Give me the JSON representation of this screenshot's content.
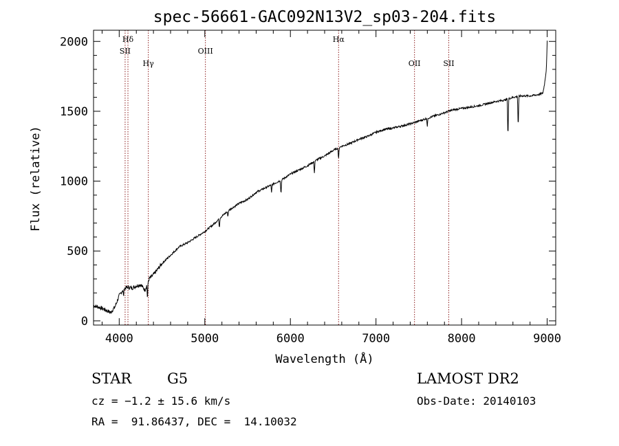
{
  "chart_data": {
    "type": "line",
    "title": "spec-56661-GAC092N13V2_sp03-204.fits",
    "xlabel": "Wavelength (Å)",
    "ylabel": "Flux (relative)",
    "xlim": [
      3700,
      9100
    ],
    "ylim": [
      -30,
      2080
    ],
    "x_ticks": [
      4000,
      5000,
      6000,
      7000,
      8000,
      9000
    ],
    "y_ticks": [
      0,
      500,
      1000,
      1500,
      2000
    ],
    "grid": false,
    "series": [
      {
        "x": [
          3700,
          3800,
          3900,
          3950,
          4000,
          4050,
          4100,
          4150,
          4200,
          4250,
          4300,
          4350,
          4400,
          4500,
          4600,
          4700,
          4800,
          4900,
          5000,
          5100,
          5200,
          5300,
          5400,
          5500,
          5600,
          5700,
          5800,
          5900,
          6000,
          6100,
          6200,
          6300,
          6400,
          6500,
          6600,
          6700,
          6800,
          6900,
          7000,
          7100,
          7200,
          7300,
          7400,
          7500,
          7600,
          7700,
          7800,
          7900,
          8000,
          8100,
          8200,
          8300,
          8400,
          8500,
          8550,
          8600,
          8700,
          8800,
          8900,
          8950,
          8970,
          8990,
          9000
        ],
        "y": [
          110,
          90,
          60,
          100,
          180,
          230,
          240,
          235,
          250,
          260,
          220,
          300,
          330,
          410,
          470,
          530,
          560,
          600,
          640,
          690,
          750,
          800,
          840,
          870,
          920,
          950,
          980,
          1010,
          1050,
          1080,
          1110,
          1150,
          1180,
          1220,
          1250,
          1270,
          1300,
          1320,
          1350,
          1370,
          1380,
          1395,
          1410,
          1430,
          1450,
          1470,
          1490,
          1510,
          1520,
          1530,
          1540,
          1555,
          1570,
          1580,
          1590,
          1600,
          1610,
          1610,
          1620,
          1630,
          1700,
          1800,
          2000
        ]
      }
    ],
    "absorption_dips": [
      {
        "x": 4050,
        "depth": 60
      },
      {
        "x": 4330,
        "depth": 120
      },
      {
        "x": 5170,
        "depth": 70
      },
      {
        "x": 5270,
        "depth": 40
      },
      {
        "x": 5780,
        "depth": 60
      },
      {
        "x": 5890,
        "depth": 110
      },
      {
        "x": 6280,
        "depth": 90
      },
      {
        "x": 6563,
        "depth": 90
      },
      {
        "x": 7600,
        "depth": 60
      },
      {
        "x": 8542,
        "depth": 300
      },
      {
        "x": 8662,
        "depth": 240
      }
    ],
    "line_markers": [
      {
        "label": "Hδ",
        "x": 4102,
        "row": 0
      },
      {
        "label": "SII",
        "x": 4069,
        "row": 1
      },
      {
        "label": "Hγ",
        "x": 4340,
        "row": 2
      },
      {
        "label": "OIII",
        "x": 5007,
        "row": 1
      },
      {
        "label": "Hα",
        "x": 6563,
        "row": 0
      },
      {
        "label": "OII",
        "x": 7450,
        "row": 2
      },
      {
        "label": "SII",
        "x": 7850,
        "row": 2
      }
    ],
    "colors": {
      "spectrum": "#000000",
      "markers": "#8b1a1a",
      "axes": "#000000"
    }
  },
  "info": {
    "object_class": "STAR",
    "subclass": "G5",
    "survey": "LAMOST DR2",
    "cz": "cz = −1.2 ± 15.6 km/s",
    "obs_date": "Obs-Date: 20140103",
    "coords": "RA =  91.86437, DEC =  14.10032"
  }
}
